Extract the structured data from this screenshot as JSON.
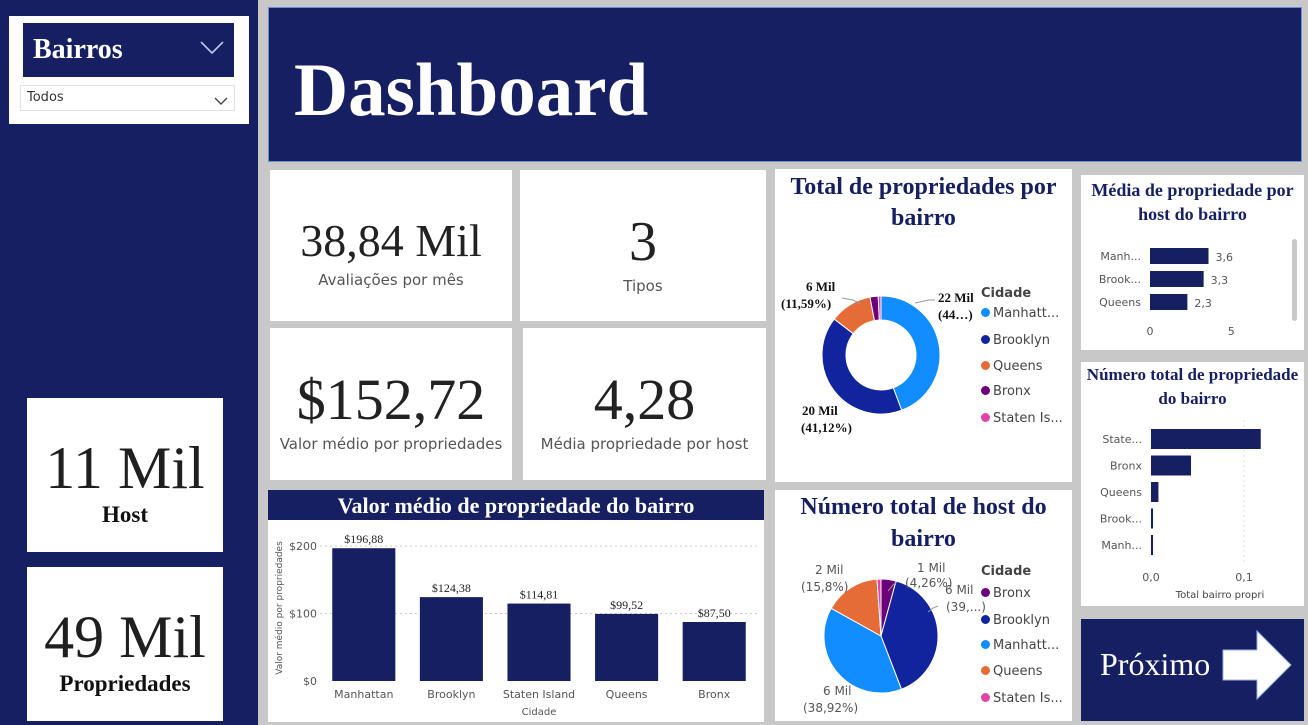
{
  "slicer": {
    "title": "Bairros",
    "value": "Todos"
  },
  "header": {
    "title": "Dashboard"
  },
  "side_kpis": [
    {
      "value": "11 Mil",
      "label": "Host"
    },
    {
      "value": "49 Mil",
      "label": "Propriedades"
    }
  ],
  "kpis": {
    "reviews": {
      "value": "38,84 Mil",
      "label": "Avaliações por mês"
    },
    "types": {
      "value": "3",
      "label": "Tipos"
    },
    "avg_price": {
      "value": "$152,72",
      "label": "Valor médio por propriedades"
    },
    "avg_prop_host": {
      "value": "4,28",
      "label": "Média propriedade por host"
    }
  },
  "next_button": {
    "label": "Próximo"
  },
  "colors": {
    "navy": "#151f62",
    "manhattan": "#118dff",
    "brooklyn": "#12239e",
    "queens": "#e66c37",
    "bronx": "#6b007b",
    "staten": "#e044a7"
  },
  "chart_data": [
    {
      "id": "donut_props",
      "type": "pie",
      "title": "Total de propriedades por bairro",
      "legend_title": "Cidade",
      "legend": [
        "Manhatt...",
        "Brooklyn",
        "Queens",
        "Bronx",
        "Staten Is..."
      ],
      "slices": [
        {
          "name": "Manhattan",
          "value": 44.3,
          "color": "#118dff"
        },
        {
          "name": "Brooklyn",
          "value": 41.12,
          "color": "#12239e"
        },
        {
          "name": "Queens",
          "value": 11.59,
          "color": "#e66c37"
        },
        {
          "name": "Bronx",
          "value": 2.23,
          "color": "#6b007b"
        },
        {
          "name": "Staten Island",
          "value": 0.76,
          "color": "#e044a7"
        }
      ],
      "data_labels": [
        {
          "l1": "22 Mil",
          "l2": "(44…)"
        },
        {
          "l1": "20 Mil",
          "l2": "(41,12%)"
        },
        {
          "l1": "6 Mil",
          "l2": "(11,59%)"
        }
      ]
    },
    {
      "id": "pie_hosts",
      "type": "pie",
      "title": "Número total de host do bairro",
      "legend_title": "Cidade",
      "legend": [
        "Bronx",
        "Brooklyn",
        "Manhatt...",
        "Queens",
        "Staten Is..."
      ],
      "slices": [
        {
          "name": "Bronx",
          "value": 4.26,
          "color": "#6b007b"
        },
        {
          "name": "Brooklyn",
          "value": 39.9,
          "color": "#12239e"
        },
        {
          "name": "Manhattan",
          "value": 38.92,
          "color": "#118dff"
        },
        {
          "name": "Queens",
          "value": 15.8,
          "color": "#e66c37"
        },
        {
          "name": "Staten Island",
          "value": 1.12,
          "color": "#e044a7"
        }
      ],
      "data_labels": [
        {
          "l1": "1 Mil",
          "l2": "(4,26%)"
        },
        {
          "l1": "6 Mil",
          "l2": "(39,...)"
        },
        {
          "l1": "6 Mil",
          "l2": "(38,92%)"
        },
        {
          "l1": "2 Mil",
          "l2": "(15,8%)"
        }
      ]
    },
    {
      "id": "bar_value",
      "type": "bar",
      "title": "Valor médio de propriedade do bairro",
      "xlabel": "Cidade",
      "ylabel": "Valor médio por propriedades",
      "categories": [
        "Manhattan",
        "Brooklyn",
        "Staten Island",
        "Queens",
        "Bronx"
      ],
      "values": [
        196.88,
        124.38,
        114.81,
        99.52,
        87.5
      ],
      "value_labels": [
        "$196,88",
        "$124,38",
        "$114,81",
        "$99,52",
        "$87,50"
      ],
      "yticks": [
        "$0",
        "$100",
        "$200"
      ],
      "ytick_values": [
        0,
        100,
        200
      ],
      "ylim": [
        0,
        215
      ]
    },
    {
      "id": "hbar_avg",
      "type": "bar",
      "orientation": "horizontal",
      "title": "Média de propriedade por host do bairro",
      "categories": [
        "Manh...",
        "Brook...",
        "Queens"
      ],
      "values": [
        3.6,
        3.3,
        2.3
      ],
      "value_labels": [
        "3,6",
        "3,3",
        "2,3"
      ],
      "xticks": [
        "0",
        "5"
      ],
      "xtick_values": [
        0,
        5
      ],
      "xlim": [
        0,
        8
      ]
    },
    {
      "id": "hbar_total",
      "type": "bar",
      "orientation": "horizontal",
      "title": "Número total de propriedade do bairro",
      "categories": [
        "State...",
        "Bronx",
        "Queens",
        "Brook...",
        "Manh..."
      ],
      "values": [
        0.118,
        0.043,
        0.008,
        0.002,
        0.001
      ],
      "xticks": [
        "0,0",
        "0,1"
      ],
      "xtick_values": [
        0,
        0.1
      ],
      "xlim": [
        0,
        0.12
      ],
      "xlabel": "Total bairro propri"
    }
  ]
}
